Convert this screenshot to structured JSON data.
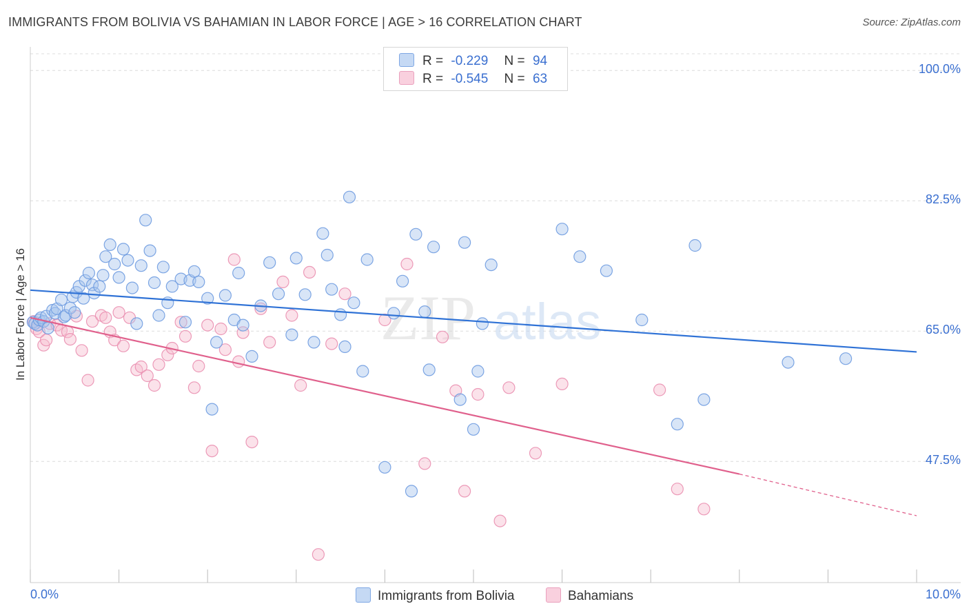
{
  "header": {
    "title": "IMMIGRANTS FROM BOLIVIA VS BAHAMIAN IN LABOR FORCE | AGE > 16 CORRELATION CHART",
    "source": "Source: ZipAtlas.com"
  },
  "legend": {
    "rows": [
      {
        "r_label": "R =",
        "r_value": "-0.229",
        "n_label": "N =",
        "n_value": "94"
      },
      {
        "r_label": "R =",
        "r_value": "-0.545",
        "n_label": "N =",
        "n_value": "63"
      }
    ]
  },
  "bottom_legend": [
    "Immigrants from Bolivia",
    "Bahamians"
  ],
  "colors": {
    "blue_fill": "#a9c6ee",
    "blue_stroke": "#6e9be0",
    "blue_line": "#2f72d6",
    "pink_fill": "#f6bfd1",
    "pink_stroke": "#ea8fb0",
    "pink_line": "#e0608c",
    "tick_text": "#3a6fd0",
    "grid": "#dcdcdc"
  },
  "chart_data": {
    "type": "scatter",
    "title": "IMMIGRANTS FROM BOLIVIA VS BAHAMIAN IN LABOR FORCE | AGE > 16 CORRELATION CHART",
    "xlabel": "",
    "ylabel": "In Labor Force | Age > 16",
    "xlim": [
      0.0,
      10.0
    ],
    "ylim": [
      31.5,
      101.5
    ],
    "x_tick_labels": [
      "0.0%",
      "10.0%"
    ],
    "y_ticks": [
      47.5,
      65.0,
      82.5,
      100.0
    ],
    "y_tick_labels": [
      "47.5%",
      "65.0%",
      "82.5%",
      "100.0%"
    ],
    "grid": true,
    "watermark": "ZIPatlas",
    "series": [
      {
        "name": "Immigrants from Bolivia",
        "r": -0.229,
        "n": 94,
        "trend": {
          "x0": 0.0,
          "y0": 70.5,
          "x1": 10.0,
          "y1": 62.2
        },
        "points": [
          [
            0.03,
            66.2
          ],
          [
            0.05,
            66.0
          ],
          [
            0.08,
            65.8
          ],
          [
            0.1,
            66.5
          ],
          [
            0.12,
            66.8
          ],
          [
            0.15,
            66.3
          ],
          [
            0.18,
            67.0
          ],
          [
            0.2,
            65.4
          ],
          [
            0.25,
            67.8
          ],
          [
            0.28,
            67.4
          ],
          [
            0.3,
            68.0
          ],
          [
            0.35,
            69.2
          ],
          [
            0.38,
            66.9
          ],
          [
            0.4,
            67.1
          ],
          [
            0.45,
            68.1
          ],
          [
            0.48,
            69.6
          ],
          [
            0.5,
            67.5
          ],
          [
            0.52,
            70.2
          ],
          [
            0.55,
            71.0
          ],
          [
            0.6,
            69.4
          ],
          [
            0.62,
            71.8
          ],
          [
            0.66,
            72.8
          ],
          [
            0.7,
            71.2
          ],
          [
            0.72,
            70.1
          ],
          [
            0.78,
            71.0
          ],
          [
            0.82,
            72.5
          ],
          [
            0.85,
            75.0
          ],
          [
            0.9,
            76.6
          ],
          [
            0.95,
            74.0
          ],
          [
            1.0,
            72.2
          ],
          [
            1.05,
            76.0
          ],
          [
            1.1,
            74.5
          ],
          [
            1.15,
            70.8
          ],
          [
            1.2,
            66.0
          ],
          [
            1.25,
            73.8
          ],
          [
            1.3,
            79.9
          ],
          [
            1.35,
            75.8
          ],
          [
            1.4,
            71.5
          ],
          [
            1.45,
            67.1
          ],
          [
            1.5,
            73.6
          ],
          [
            1.55,
            68.8
          ],
          [
            1.6,
            71.0
          ],
          [
            1.7,
            72.0
          ],
          [
            1.75,
            66.2
          ],
          [
            1.8,
            71.8
          ],
          [
            1.85,
            73.0
          ],
          [
            1.9,
            71.6
          ],
          [
            2.0,
            69.4
          ],
          [
            2.05,
            54.5
          ],
          [
            2.1,
            63.5
          ],
          [
            2.2,
            69.8
          ],
          [
            2.3,
            66.5
          ],
          [
            2.35,
            72.8
          ],
          [
            2.4,
            65.8
          ],
          [
            2.5,
            61.6
          ],
          [
            2.6,
            68.4
          ],
          [
            2.7,
            74.2
          ],
          [
            2.8,
            70.0
          ],
          [
            2.95,
            64.5
          ],
          [
            3.0,
            74.8
          ],
          [
            3.1,
            69.9
          ],
          [
            3.2,
            63.5
          ],
          [
            3.3,
            78.1
          ],
          [
            3.35,
            75.2
          ],
          [
            3.4,
            70.6
          ],
          [
            3.5,
            67.2
          ],
          [
            3.55,
            62.9
          ],
          [
            3.6,
            83.0
          ],
          [
            3.65,
            68.8
          ],
          [
            3.75,
            59.6
          ],
          [
            3.8,
            74.6
          ],
          [
            4.0,
            46.7
          ],
          [
            4.1,
            67.4
          ],
          [
            4.2,
            71.7
          ],
          [
            4.3,
            43.5
          ],
          [
            4.35,
            78.0
          ],
          [
            4.45,
            67.6
          ],
          [
            4.5,
            59.8
          ],
          [
            4.55,
            76.3
          ],
          [
            4.85,
            55.8
          ],
          [
            4.9,
            76.9
          ],
          [
            5.0,
            51.8
          ],
          [
            5.05,
            59.6
          ],
          [
            5.1,
            66.0
          ],
          [
            5.2,
            73.9
          ],
          [
            6.0,
            78.7
          ],
          [
            6.2,
            75.0
          ],
          [
            6.5,
            73.1
          ],
          [
            6.9,
            66.5
          ],
          [
            7.3,
            52.5
          ],
          [
            7.5,
            76.5
          ],
          [
            7.6,
            55.8
          ],
          [
            8.55,
            60.8
          ],
          [
            9.2,
            61.3
          ]
        ]
      },
      {
        "name": "Bahamians",
        "r": -0.545,
        "n": 63,
        "trend": {
          "x0": 0.0,
          "y0": 66.8,
          "x1": 8.0,
          "y1": 45.8,
          "dashed_to_x": 10.0,
          "dashed_to_y": 40.2
        },
        "points": [
          [
            0.04,
            66.3
          ],
          [
            0.07,
            65.3
          ],
          [
            0.1,
            64.9
          ],
          [
            0.15,
            63.1
          ],
          [
            0.18,
            63.8
          ],
          [
            0.22,
            66.0
          ],
          [
            0.3,
            65.8
          ],
          [
            0.35,
            65.1
          ],
          [
            0.42,
            64.9
          ],
          [
            0.45,
            63.9
          ],
          [
            0.52,
            67.0
          ],
          [
            0.58,
            62.4
          ],
          [
            0.65,
            58.4
          ],
          [
            0.7,
            66.3
          ],
          [
            0.8,
            67.1
          ],
          [
            0.85,
            66.8
          ],
          [
            0.9,
            64.9
          ],
          [
            0.95,
            63.8
          ],
          [
            1.0,
            67.5
          ],
          [
            1.05,
            63.0
          ],
          [
            1.12,
            66.8
          ],
          [
            1.2,
            59.8
          ],
          [
            1.25,
            60.2
          ],
          [
            1.32,
            59.0
          ],
          [
            1.4,
            57.7
          ],
          [
            1.45,
            60.5
          ],
          [
            1.55,
            61.8
          ],
          [
            1.6,
            62.7
          ],
          [
            1.7,
            66.2
          ],
          [
            1.75,
            64.3
          ],
          [
            1.85,
            57.4
          ],
          [
            1.9,
            60.3
          ],
          [
            2.0,
            65.8
          ],
          [
            2.05,
            48.9
          ],
          [
            2.15,
            65.3
          ],
          [
            2.2,
            62.5
          ],
          [
            2.3,
            74.6
          ],
          [
            2.35,
            60.9
          ],
          [
            2.4,
            64.8
          ],
          [
            2.5,
            50.1
          ],
          [
            2.6,
            68.0
          ],
          [
            2.7,
            63.5
          ],
          [
            2.85,
            71.6
          ],
          [
            2.95,
            67.1
          ],
          [
            3.05,
            57.7
          ],
          [
            3.15,
            72.9
          ],
          [
            3.25,
            35.0
          ],
          [
            3.4,
            63.3
          ],
          [
            3.55,
            70.0
          ],
          [
            4.0,
            66.5
          ],
          [
            4.25,
            74.0
          ],
          [
            4.45,
            47.2
          ],
          [
            4.65,
            64.2
          ],
          [
            4.8,
            57.0
          ],
          [
            4.9,
            43.5
          ],
          [
            5.05,
            56.5
          ],
          [
            5.3,
            39.5
          ],
          [
            5.4,
            57.4
          ],
          [
            5.7,
            48.6
          ],
          [
            6.0,
            57.9
          ],
          [
            7.1,
            57.1
          ],
          [
            7.3,
            43.8
          ],
          [
            7.6,
            41.1
          ]
        ]
      }
    ]
  }
}
